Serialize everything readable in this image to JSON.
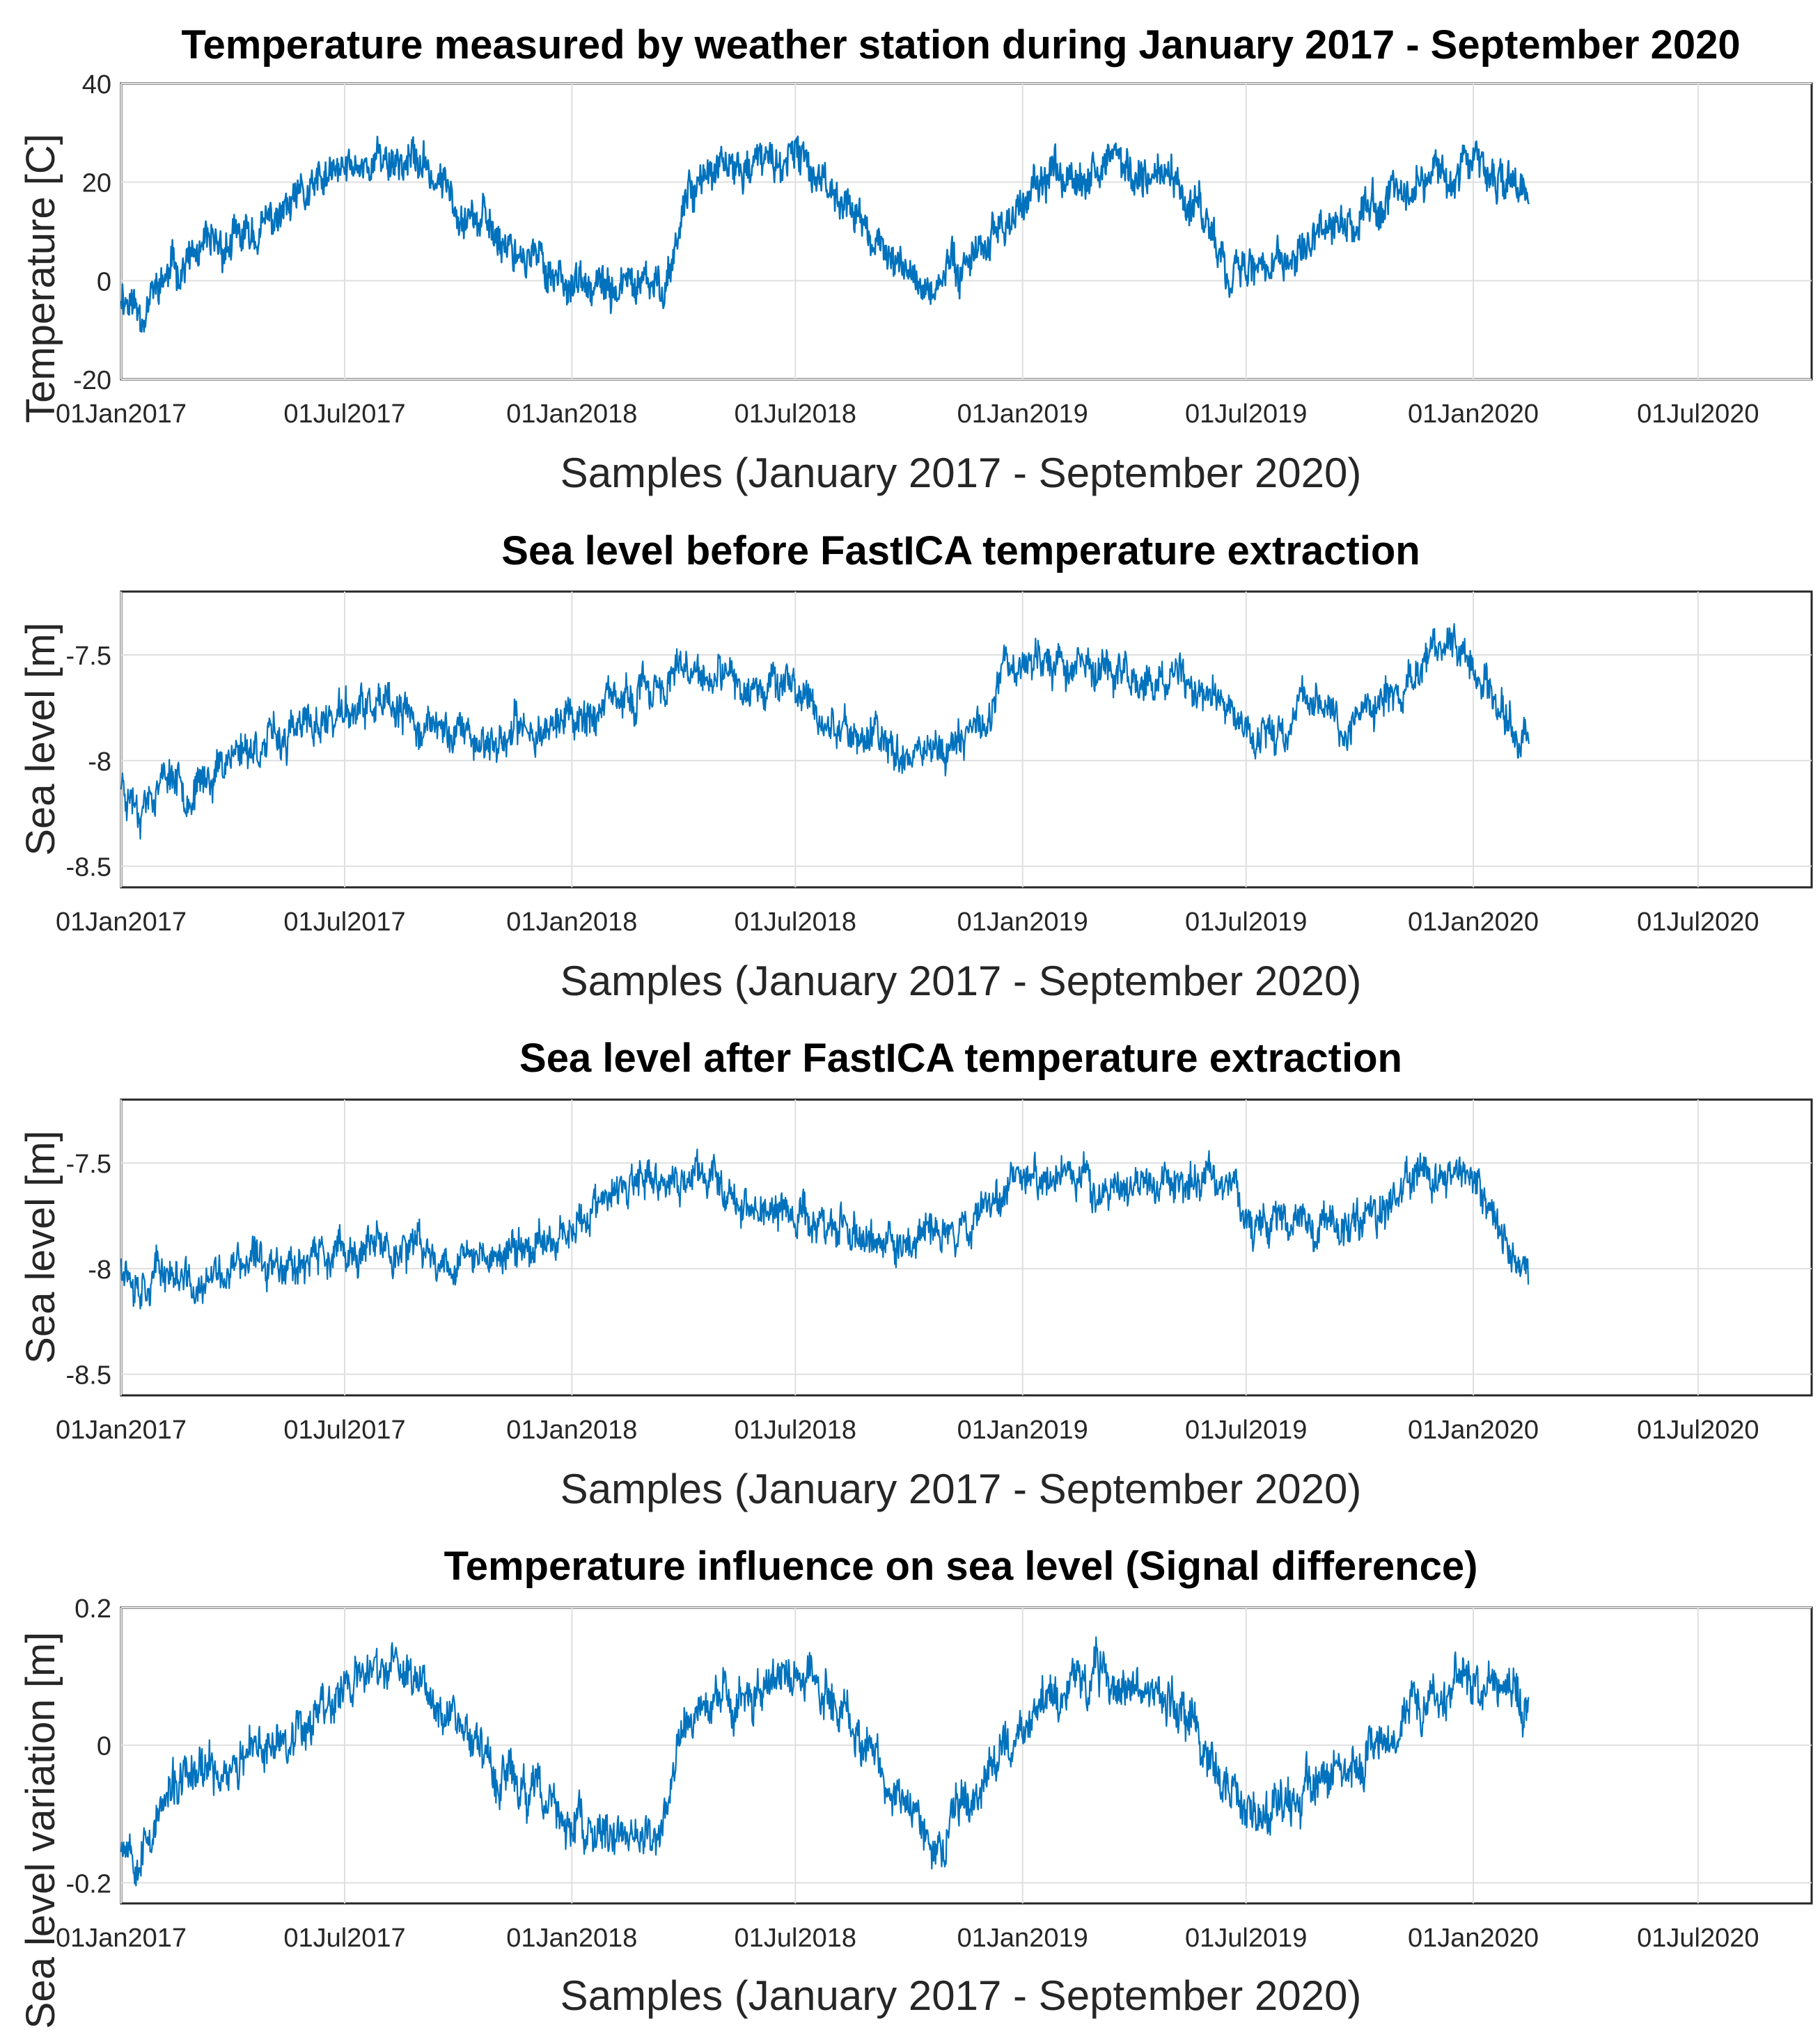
{
  "colors": {
    "line": "#0072BD",
    "grid": "#dfdfdf",
    "axis": "#262626",
    "text": "#000000"
  },
  "x_tick_labels": [
    "01Jan2017",
    "01Jul2017",
    "01Jan2018",
    "01Jul2018",
    "01Jan2019",
    "01Jul2019",
    "01Jan2020",
    "01Jul2020"
  ],
  "chart_data": [
    {
      "type": "line",
      "title": "Temperature measured by weather station during January 2017 - September 2020",
      "xlabel": "Samples (January 2017 - September 2020)",
      "ylabel": "Temperature [C]",
      "x_range": [
        "01Jan2017",
        "01Oct2020"
      ],
      "ylim": [
        -20,
        40
      ],
      "yticks": [
        -20,
        0,
        20,
        40
      ],
      "ytick_labels": [
        "-20",
        "0",
        "20",
        "40"
      ],
      "grid": true,
      "anchors": [
        [
          0,
          -2
        ],
        [
          15,
          -6
        ],
        [
          45,
          3
        ],
        [
          75,
          6
        ],
        [
          105,
          9
        ],
        [
          135,
          14
        ],
        [
          165,
          20
        ],
        [
          195,
          24
        ],
        [
          215,
          25
        ],
        [
          240,
          24
        ],
        [
          270,
          17
        ],
        [
          300,
          10
        ],
        [
          330,
          5
        ],
        [
          355,
          1
        ],
        [
          365,
          0
        ],
        [
          380,
          -3
        ],
        [
          410,
          -1
        ],
        [
          435,
          -2
        ],
        [
          445,
          3
        ],
        [
          460,
          20
        ],
        [
          490,
          22
        ],
        [
          520,
          24
        ],
        [
          550,
          24
        ],
        [
          575,
          20
        ],
        [
          595,
          13
        ],
        [
          610,
          8
        ],
        [
          625,
          4
        ],
        [
          645,
          0
        ],
        [
          660,
          -2
        ],
        [
          670,
          2
        ],
        [
          700,
          8
        ],
        [
          730,
          15
        ],
        [
          760,
          22
        ],
        [
          790,
          24
        ],
        [
          810,
          23
        ],
        [
          840,
          22
        ],
        [
          860,
          18
        ],
        [
          880,
          12
        ],
        [
          895,
          4
        ],
        [
          905,
          3
        ],
        [
          920,
          2
        ],
        [
          940,
          4
        ],
        [
          960,
          6
        ],
        [
          980,
          9
        ],
        [
          1000,
          13
        ],
        [
          1030,
          18
        ],
        [
          1060,
          22
        ],
        [
          1090,
          23
        ],
        [
          1110,
          22
        ],
        [
          1130,
          21
        ],
        [
          1140,
          18
        ]
      ],
      "noise": {
        "amplitude": 6,
        "seed": 11
      }
    },
    {
      "type": "line",
      "title": "Sea level before FastICA temperature extraction",
      "xlabel": "Samples (January 2017 - September 2020)",
      "ylabel": "Sea level [m]",
      "x_range": [
        "01Jan2017",
        "01Oct2020"
      ],
      "ylim": [
        -8.6,
        -7.2
      ],
      "yticks": [
        -8.5,
        -8,
        -7.5
      ],
      "ytick_labels": [
        "-8.5",
        "-8",
        "-7.5"
      ],
      "grid": true,
      "anchors": [
        [
          0,
          -8.1
        ],
        [
          15,
          -8.2
        ],
        [
          40,
          -8.05
        ],
        [
          60,
          -8.15
        ],
        [
          90,
          -7.95
        ],
        [
          130,
          -7.9
        ],
        [
          150,
          -7.85
        ],
        [
          170,
          -7.8
        ],
        [
          200,
          -7.75
        ],
        [
          230,
          -7.8
        ],
        [
          250,
          -7.85
        ],
        [
          270,
          -7.85
        ],
        [
          300,
          -7.92
        ],
        [
          330,
          -7.85
        ],
        [
          360,
          -7.8
        ],
        [
          400,
          -7.75
        ],
        [
          430,
          -7.65
        ],
        [
          460,
          -7.6
        ],
        [
          500,
          -7.65
        ],
        [
          530,
          -7.6
        ],
        [
          560,
          -7.75
        ],
        [
          580,
          -7.85
        ],
        [
          610,
          -7.9
        ],
        [
          650,
          -7.95
        ],
        [
          680,
          -7.9
        ],
        [
          700,
          -7.8
        ],
        [
          715,
          -7.55
        ],
        [
          740,
          -7.5
        ],
        [
          770,
          -7.55
        ],
        [
          800,
          -7.55
        ],
        [
          830,
          -7.65
        ],
        [
          860,
          -7.65
        ],
        [
          900,
          -7.75
        ],
        [
          920,
          -7.9
        ],
        [
          945,
          -7.85
        ],
        [
          960,
          -7.65
        ],
        [
          990,
          -7.85
        ],
        [
          1010,
          -7.75
        ],
        [
          1040,
          -7.65
        ],
        [
          1060,
          -7.5
        ],
        [
          1080,
          -7.45
        ],
        [
          1100,
          -7.6
        ],
        [
          1120,
          -7.8
        ],
        [
          1140,
          -7.95
        ]
      ],
      "noise": {
        "amplitude": 0.14,
        "seed": 23
      }
    },
    {
      "type": "line",
      "title": "Sea level after FastICA temperature extraction",
      "xlabel": "Samples (January 2017 - September 2020)",
      "ylabel": "Sea level [m]",
      "x_range": [
        "01Jan2017",
        "01Oct2020"
      ],
      "ylim": [
        -8.6,
        -7.2
      ],
      "yticks": [
        -8.5,
        -8,
        -7.5
      ],
      "ytick_labels": [
        "-8.5",
        "-8",
        "-7.5"
      ],
      "grid": true,
      "anchors": [
        [
          0,
          -7.95
        ],
        [
          15,
          -8.05
        ],
        [
          40,
          -8.0
        ],
        [
          60,
          -8.12
        ],
        [
          90,
          -8.0
        ],
        [
          130,
          -7.95
        ],
        [
          170,
          -7.95
        ],
        [
          220,
          -7.9
        ],
        [
          260,
          -7.95
        ],
        [
          300,
          -7.95
        ],
        [
          330,
          -7.9
        ],
        [
          360,
          -7.8
        ],
        [
          390,
          -7.7
        ],
        [
          420,
          -7.6
        ],
        [
          450,
          -7.6
        ],
        [
          480,
          -7.55
        ],
        [
          510,
          -7.72
        ],
        [
          550,
          -7.75
        ],
        [
          580,
          -7.8
        ],
        [
          600,
          -7.85
        ],
        [
          620,
          -7.9
        ],
        [
          650,
          -7.85
        ],
        [
          680,
          -7.8
        ],
        [
          700,
          -7.7
        ],
        [
          720,
          -7.55
        ],
        [
          750,
          -7.55
        ],
        [
          780,
          -7.6
        ],
        [
          810,
          -7.62
        ],
        [
          850,
          -7.6
        ],
        [
          880,
          -7.58
        ],
        [
          900,
          -7.6
        ],
        [
          920,
          -7.8
        ],
        [
          950,
          -7.75
        ],
        [
          980,
          -7.8
        ],
        [
          1010,
          -7.75
        ],
        [
          1040,
          -7.6
        ],
        [
          1070,
          -7.55
        ],
        [
          1090,
          -7.6
        ],
        [
          1110,
          -7.75
        ],
        [
          1125,
          -7.9
        ],
        [
          1140,
          -8.0
        ]
      ],
      "noise": {
        "amplitude": 0.14,
        "seed": 37
      }
    },
    {
      "type": "line",
      "title": "Temperature influence on sea level (Signal difference)",
      "xlabel": "Samples (January 2017 - September 2020)",
      "ylabel": "Sea level variation [m]",
      "x_range": [
        "01Jan2017",
        "01Oct2020"
      ],
      "ylim": [
        -0.23,
        0.2
      ],
      "yticks": [
        -0.2,
        0,
        0.2
      ],
      "ytick_labels": [
        "-0.2",
        "0",
        "0.2"
      ],
      "grid": true,
      "anchors": [
        [
          0,
          -0.13
        ],
        [
          15,
          -0.15
        ],
        [
          45,
          -0.06
        ],
        [
          75,
          -0.04
        ],
        [
          105,
          -0.02
        ],
        [
          135,
          0.02
        ],
        [
          165,
          0.06
        ],
        [
          195,
          0.1
        ],
        [
          215,
          0.11
        ],
        [
          240,
          0.1
        ],
        [
          270,
          0.05
        ],
        [
          300,
          -0.03
        ],
        [
          330,
          -0.07
        ],
        [
          355,
          -0.1
        ],
        [
          380,
          -0.14
        ],
        [
          410,
          -0.12
        ],
        [
          430,
          -0.16
        ],
        [
          440,
          -0.1
        ],
        [
          455,
          0.03
        ],
        [
          490,
          0.06
        ],
        [
          520,
          0.09
        ],
        [
          550,
          0.1
        ],
        [
          575,
          0.08
        ],
        [
          595,
          0.03
        ],
        [
          610,
          -0.02
        ],
        [
          625,
          -0.07
        ],
        [
          645,
          -0.12
        ],
        [
          660,
          -0.15
        ],
        [
          675,
          -0.1
        ],
        [
          700,
          -0.04
        ],
        [
          730,
          0.03
        ],
        [
          760,
          0.08
        ],
        [
          790,
          0.1
        ],
        [
          810,
          0.09
        ],
        [
          840,
          0.08
        ],
        [
          860,
          0.05
        ],
        [
          880,
          0.0
        ],
        [
          895,
          -0.06
        ],
        [
          910,
          -0.1
        ],
        [
          925,
          -0.12
        ],
        [
          940,
          -0.1
        ],
        [
          960,
          -0.07
        ],
        [
          980,
          -0.05
        ],
        [
          1000,
          -0.02
        ],
        [
          1030,
          0.03
        ],
        [
          1060,
          0.08
        ],
        [
          1090,
          0.1
        ],
        [
          1110,
          0.09
        ],
        [
          1130,
          0.08
        ],
        [
          1140,
          0.07
        ]
      ],
      "noise": {
        "amplitude": 0.05,
        "seed": 53
      }
    }
  ]
}
